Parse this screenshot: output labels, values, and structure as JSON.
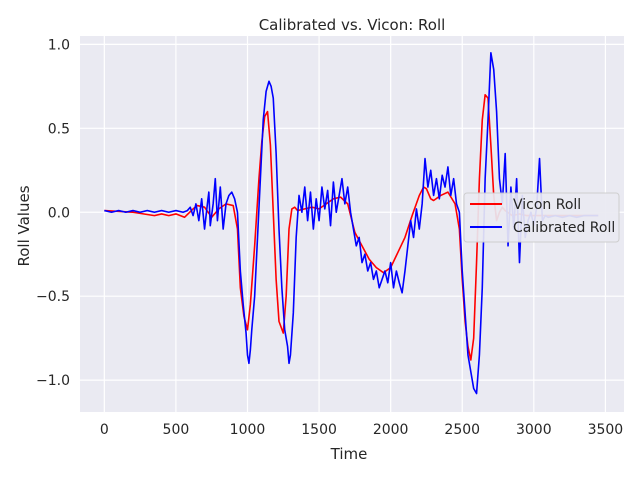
{
  "chart_data": {
    "type": "line",
    "title": "Calibrated vs. Vicon: Roll",
    "xlabel": "Time",
    "ylabel": "Roll Values",
    "xlim": [
      -170,
      3630
    ],
    "ylim": [
      -1.19,
      1.05
    ],
    "xticks": [
      0,
      500,
      1000,
      1500,
      2000,
      2500,
      3000,
      3500
    ],
    "xtick_labels": [
      "0",
      "500",
      "1000",
      "1500",
      "2000",
      "2500",
      "3000",
      "3500"
    ],
    "yticks": [
      -1.0,
      -0.5,
      0.0,
      0.5,
      1.0
    ],
    "ytick_labels": [
      "−1.0",
      "−0.5",
      "0.0",
      "0.5",
      "1.0"
    ],
    "grid": true,
    "background": "#eaeaf2",
    "legend_position": "center-right",
    "series": [
      {
        "name": "Vicon Roll",
        "color": "#ff0000",
        "x": [
          0,
          200,
          350,
          400,
          450,
          500,
          560,
          620,
          650,
          700,
          750,
          800,
          850,
          900,
          930,
          950,
          975,
          1000,
          1020,
          1050,
          1080,
          1100,
          1120,
          1140,
          1160,
          1180,
          1200,
          1220,
          1250,
          1270,
          1290,
          1310,
          1330,
          1350,
          1400,
          1450,
          1500,
          1550,
          1600,
          1650,
          1700,
          1750,
          1800,
          1850,
          1900,
          1950,
          2000,
          2050,
          2100,
          2150,
          2200,
          2230,
          2250,
          2280,
          2300,
          2350,
          2400,
          2450,
          2480,
          2500,
          2520,
          2540,
          2560,
          2580,
          2600,
          2620,
          2640,
          2660,
          2680,
          2700,
          2720,
          2740,
          2760,
          2780,
          2800,
          2850,
          2900,
          2950,
          3000,
          3100,
          3200,
          3300,
          3400,
          3450
        ],
        "y": [
          0.01,
          0.0,
          -0.02,
          -0.01,
          -0.02,
          -0.01,
          -0.03,
          0.02,
          0.04,
          0.03,
          -0.03,
          0.02,
          0.05,
          0.04,
          -0.1,
          -0.45,
          -0.62,
          -0.7,
          -0.55,
          -0.2,
          0.2,
          0.42,
          0.57,
          0.6,
          0.4,
          0.0,
          -0.4,
          -0.65,
          -0.72,
          -0.5,
          -0.1,
          0.02,
          0.03,
          0.01,
          0.02,
          0.03,
          0.02,
          0.05,
          0.08,
          0.09,
          0.05,
          -0.12,
          -0.2,
          -0.28,
          -0.33,
          -0.36,
          -0.33,
          -0.24,
          -0.15,
          -0.02,
          0.1,
          0.15,
          0.14,
          0.08,
          0.07,
          0.1,
          0.12,
          0.05,
          -0.1,
          -0.4,
          -0.65,
          -0.8,
          -0.88,
          -0.75,
          -0.3,
          0.2,
          0.55,
          0.7,
          0.68,
          0.4,
          0.1,
          -0.05,
          0.0,
          0.03,
          0.01,
          -0.02,
          -0.01,
          -0.02,
          -0.02,
          -0.02,
          -0.02,
          -0.02,
          -0.02,
          -0.02
        ]
      },
      {
        "name": "Calibrated Roll",
        "color": "#0000ff",
        "x": [
          0,
          50,
          100,
          150,
          200,
          250,
          300,
          350,
          400,
          450,
          500,
          550,
          580,
          600,
          620,
          640,
          660,
          680,
          700,
          720,
          730,
          740,
          760,
          775,
          790,
          810,
          830,
          850,
          870,
          890,
          910,
          930,
          950,
          970,
          990,
          1000,
          1010,
          1020,
          1030,
          1050,
          1070,
          1090,
          1110,
          1130,
          1150,
          1165,
          1180,
          1200,
          1220,
          1240,
          1260,
          1280,
          1290,
          1300,
          1320,
          1340,
          1360,
          1380,
          1400,
          1420,
          1440,
          1460,
          1480,
          1500,
          1520,
          1540,
          1560,
          1580,
          1600,
          1620,
          1640,
          1660,
          1680,
          1700,
          1720,
          1740,
          1760,
          1780,
          1800,
          1820,
          1840,
          1860,
          1880,
          1900,
          1920,
          1940,
          1960,
          1980,
          2000,
          2020,
          2040,
          2060,
          2080,
          2100,
          2120,
          2140,
          2160,
          2180,
          2200,
          2220,
          2240,
          2260,
          2280,
          2300,
          2320,
          2340,
          2360,
          2380,
          2400,
          2420,
          2440,
          2460,
          2480,
          2500,
          2520,
          2540,
          2560,
          2580,
          2600,
          2620,
          2640,
          2660,
          2680,
          2700,
          2720,
          2740,
          2760,
          2780,
          2800,
          2820,
          2840,
          2860,
          2880,
          2900,
          2920,
          2940,
          2960,
          2980,
          3000,
          3020,
          3040,
          3060,
          3080,
          3100,
          3150,
          3200,
          3250,
          3300,
          3350,
          3400,
          3450
        ],
        "y": [
          0.01,
          0.0,
          0.01,
          0.0,
          0.01,
          0.0,
          0.01,
          0.0,
          0.01,
          0.0,
          0.01,
          0.0,
          0.01,
          0.03,
          -0.02,
          0.05,
          -0.05,
          0.08,
          -0.1,
          0.05,
          0.12,
          -0.08,
          0.05,
          0.2,
          -0.05,
          0.15,
          -0.1,
          0.05,
          0.1,
          0.12,
          0.08,
          0.0,
          -0.35,
          -0.55,
          -0.72,
          -0.85,
          -0.9,
          -0.82,
          -0.7,
          -0.5,
          -0.15,
          0.2,
          0.55,
          0.72,
          0.78,
          0.75,
          0.68,
          0.35,
          -0.1,
          -0.45,
          -0.7,
          -0.8,
          -0.9,
          -0.85,
          -0.6,
          -0.15,
          0.1,
          0.0,
          0.15,
          -0.05,
          0.12,
          -0.1,
          0.08,
          -0.05,
          0.15,
          0.02,
          0.13,
          -0.08,
          0.18,
          0.0,
          0.1,
          0.2,
          0.05,
          0.15,
          0.0,
          -0.1,
          -0.2,
          -0.15,
          -0.3,
          -0.25,
          -0.35,
          -0.3,
          -0.4,
          -0.35,
          -0.45,
          -0.4,
          -0.35,
          -0.42,
          -0.3,
          -0.45,
          -0.35,
          -0.42,
          -0.48,
          -0.35,
          -0.2,
          -0.05,
          -0.15,
          0.02,
          -0.1,
          0.05,
          0.32,
          0.15,
          0.25,
          0.1,
          0.2,
          0.08,
          0.22,
          0.15,
          0.27,
          0.1,
          0.2,
          0.05,
          0.0,
          -0.35,
          -0.6,
          -0.85,
          -0.95,
          -1.05,
          -1.08,
          -0.85,
          -0.45,
          0.2,
          0.55,
          0.95,
          0.85,
          0.6,
          0.2,
          0.05,
          0.35,
          -0.2,
          0.15,
          -0.1,
          0.2,
          -0.3,
          0.1,
          -0.15,
          -0.05,
          0.0,
          -0.08,
          0.03,
          0.32,
          -0.05,
          -0.02,
          -0.03,
          -0.02,
          -0.03,
          -0.02,
          -0.03,
          -0.02,
          -0.02,
          -0.02
        ]
      }
    ]
  }
}
